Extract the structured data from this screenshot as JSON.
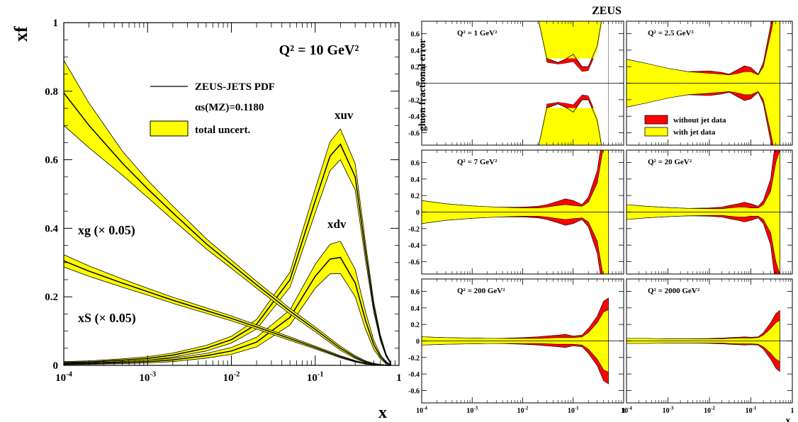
{
  "chart_data": [
    {
      "type": "line",
      "x_scale": "log",
      "xlim": [
        0.0001,
        1
      ],
      "ylim": [
        0,
        1
      ],
      "xlabel": "x",
      "ylabel": "xf",
      "x_ticks": [
        "10-4",
        "10-3",
        "10-2",
        "10-1",
        "1"
      ],
      "y_ticks": [
        "0",
        "0.2",
        "0.4",
        "0.6",
        "0.8",
        "1"
      ],
      "scale_label": "Q² = 10 GeV²",
      "legend": {
        "line_label": "ZEUS-JETS PDF",
        "alpha_label": "αs(MZ)=0.1180",
        "band_label": "total uncert."
      },
      "band_color": "#ffff00",
      "series": [
        {
          "name": "xuv",
          "x": [
            0.0001,
            0.0002,
            0.0005,
            0.001,
            0.002,
            0.005,
            0.01,
            0.02,
            0.05,
            0.1,
            0.15,
            0.2,
            0.3,
            0.4,
            0.5,
            0.6,
            0.7,
            0.8
          ],
          "y": [
            0.008,
            0.01,
            0.015,
            0.02,
            0.03,
            0.05,
            0.075,
            0.12,
            0.25,
            0.48,
            0.61,
            0.645,
            0.55,
            0.33,
            0.17,
            0.08,
            0.03,
            0.005
          ],
          "err": [
            0.003,
            0.003,
            0.004,
            0.005,
            0.006,
            0.008,
            0.01,
            0.014,
            0.022,
            0.035,
            0.042,
            0.045,
            0.038,
            0.025,
            0.015,
            0.008,
            0.004,
            0.002
          ]
        },
        {
          "name": "xdv",
          "x": [
            0.0001,
            0.0002,
            0.0005,
            0.001,
            0.002,
            0.005,
            0.01,
            0.02,
            0.05,
            0.1,
            0.15,
            0.2,
            0.3,
            0.4,
            0.5,
            0.6,
            0.7,
            0.8
          ],
          "y": [
            0.004,
            0.005,
            0.008,
            0.011,
            0.016,
            0.028,
            0.042,
            0.068,
            0.14,
            0.26,
            0.31,
            0.315,
            0.24,
            0.13,
            0.06,
            0.025,
            0.008,
            0.001
          ],
          "err": [
            0.002,
            0.002,
            0.003,
            0.004,
            0.005,
            0.007,
            0.01,
            0.014,
            0.022,
            0.035,
            0.043,
            0.047,
            0.04,
            0.025,
            0.013,
            0.006,
            0.003,
            0.001
          ]
        },
        {
          "name": "xg (× 0.05)",
          "x": [
            0.0001,
            0.0002,
            0.0005,
            0.001,
            0.002,
            0.005,
            0.01,
            0.02,
            0.05,
            0.1,
            0.2,
            0.3,
            0.4,
            0.5,
            0.6,
            0.7,
            0.8
          ],
          "y": [
            0.795,
            0.7,
            0.59,
            0.515,
            0.445,
            0.355,
            0.295,
            0.235,
            0.158,
            0.105,
            0.05,
            0.024,
            0.01,
            0.004,
            0.0015,
            0.0005,
            0.0001
          ],
          "err": [
            0.095,
            0.065,
            0.035,
            0.025,
            0.02,
            0.015,
            0.012,
            0.01,
            0.008,
            0.007,
            0.006,
            0.004,
            0.003,
            0.002,
            0.001,
            0.0005,
            0.0001
          ]
        },
        {
          "name": "xS (× 0.05)",
          "x": [
            0.0001,
            0.0002,
            0.0005,
            0.001,
            0.002,
            0.005,
            0.01,
            0.02,
            0.05,
            0.1,
            0.2,
            0.3,
            0.4,
            0.5,
            0.6,
            0.7,
            0.8
          ],
          "y": [
            0.305,
            0.275,
            0.24,
            0.215,
            0.19,
            0.16,
            0.137,
            0.112,
            0.078,
            0.052,
            0.025,
            0.012,
            0.005,
            0.002,
            0.0006,
            0.0002,
            0.0001
          ],
          "err": [
            0.018,
            0.015,
            0.012,
            0.01,
            0.009,
            0.008,
            0.007,
            0.006,
            0.005,
            0.004,
            0.003,
            0.002,
            0.001,
            0.0008,
            0.0004,
            0.0002,
            0.0001
          ]
        }
      ]
    },
    {
      "type": "area",
      "title": "ZEUS",
      "ylabel": "gluon fractional error",
      "xlabel": "x",
      "x_scale": "log",
      "xlim": [
        0.0001,
        1
      ],
      "ylim": [
        -0.75,
        0.75
      ],
      "x_ticks": [
        "10-4",
        "10-3",
        "10-2",
        "10-1",
        "1"
      ],
      "y_ticks": [
        "-0.6",
        "-0.4",
        "-0.2",
        "0",
        "0.2",
        "0.4",
        "0.6"
      ],
      "legend": {
        "without": "without jet data",
        "with": "with jet data"
      },
      "colors": {
        "without": "#ff0000",
        "with": "#ffff00"
      },
      "panels": [
        {
          "label": "Q² = 1 GeV²",
          "x": [
            0.0001,
            0.001,
            0.01,
            0.02,
            0.03,
            0.05,
            0.07,
            0.1,
            0.15,
            0.2,
            0.3,
            0.4,
            0.5
          ],
          "with": [
            0.8,
            0.8,
            0.8,
            0.8,
            0.8,
            0.8,
            0.8,
            0.8,
            0.8,
            0.8,
            0.8,
            0.8,
            0.8
          ],
          "without": [
            0.8,
            0.8,
            0.8,
            0.8,
            0.3,
            0.25,
            0.29,
            0.35,
            0.2,
            0.2,
            0.45,
            0.9,
            1.2
          ],
          "without_inner": [
            0.8,
            0.8,
            0.8,
            0.8,
            0.25,
            0.23,
            0.24,
            0.26,
            0.14,
            0.15,
            0.4,
            0.85,
            1.1
          ]
        },
        {
          "label": "Q² = 2.5 GeV²",
          "x": [
            0.0001,
            0.0003,
            0.001,
            0.003,
            0.01,
            0.02,
            0.03,
            0.05,
            0.07,
            0.1,
            0.15,
            0.2,
            0.3,
            0.4,
            0.5
          ],
          "with": [
            0.29,
            0.24,
            0.18,
            0.14,
            0.12,
            0.11,
            0.1,
            0.12,
            0.14,
            0.14,
            0.1,
            0.2,
            0.6,
            0.9,
            0.9
          ],
          "without": [
            0.29,
            0.24,
            0.18,
            0.14,
            0.15,
            0.13,
            0.11,
            0.17,
            0.21,
            0.19,
            0.11,
            0.25,
            0.7,
            1.0,
            1.0
          ]
        },
        {
          "label": "Q² = 7 GeV²",
          "x": [
            0.0001,
            0.0003,
            0.001,
            0.003,
            0.01,
            0.02,
            0.03,
            0.05,
            0.07,
            0.1,
            0.15,
            0.2,
            0.3,
            0.4,
            0.5
          ],
          "with": [
            0.14,
            0.1,
            0.075,
            0.06,
            0.05,
            0.05,
            0.06,
            0.08,
            0.09,
            0.08,
            0.07,
            0.12,
            0.35,
            0.8,
            0.9
          ],
          "without": [
            0.14,
            0.1,
            0.075,
            0.06,
            0.06,
            0.07,
            0.09,
            0.13,
            0.16,
            0.14,
            0.09,
            0.18,
            0.5,
            1.0,
            1.0
          ]
        },
        {
          "label": "Q² = 20 GeV²",
          "x": [
            0.0001,
            0.0003,
            0.001,
            0.003,
            0.01,
            0.02,
            0.03,
            0.05,
            0.07,
            0.1,
            0.15,
            0.2,
            0.3,
            0.4,
            0.5
          ],
          "with": [
            0.09,
            0.07,
            0.055,
            0.045,
            0.04,
            0.04,
            0.05,
            0.06,
            0.06,
            0.05,
            0.05,
            0.09,
            0.25,
            0.6,
            0.75
          ],
          "without": [
            0.09,
            0.07,
            0.055,
            0.045,
            0.05,
            0.06,
            0.08,
            0.1,
            0.12,
            0.1,
            0.07,
            0.14,
            0.4,
            0.9,
            1.0
          ]
        },
        {
          "label": "Q² = 200 GeV²",
          "x": [
            0.0001,
            0.0003,
            0.001,
            0.003,
            0.01,
            0.02,
            0.03,
            0.05,
            0.07,
            0.1,
            0.15,
            0.2,
            0.3,
            0.4,
            0.5
          ],
          "with": [
            0.05,
            0.04,
            0.035,
            0.03,
            0.03,
            0.03,
            0.035,
            0.04,
            0.04,
            0.04,
            0.05,
            0.1,
            0.22,
            0.35,
            0.38
          ],
          "without": [
            0.05,
            0.04,
            0.035,
            0.03,
            0.04,
            0.05,
            0.06,
            0.07,
            0.08,
            0.06,
            0.07,
            0.15,
            0.3,
            0.48,
            0.52
          ]
        },
        {
          "label": "Q² = 2000 GeV²",
          "x": [
            0.0001,
            0.0003,
            0.001,
            0.003,
            0.01,
            0.02,
            0.03,
            0.05,
            0.07,
            0.1,
            0.15,
            0.2,
            0.3,
            0.4,
            0.5
          ],
          "with": [
            0.03,
            0.03,
            0.025,
            0.025,
            0.025,
            0.025,
            0.03,
            0.035,
            0.035,
            0.035,
            0.04,
            0.07,
            0.15,
            0.22,
            0.25
          ],
          "without": [
            0.03,
            0.03,
            0.025,
            0.025,
            0.03,
            0.035,
            0.04,
            0.045,
            0.05,
            0.045,
            0.05,
            0.1,
            0.22,
            0.33,
            0.37
          ]
        }
      ]
    }
  ]
}
